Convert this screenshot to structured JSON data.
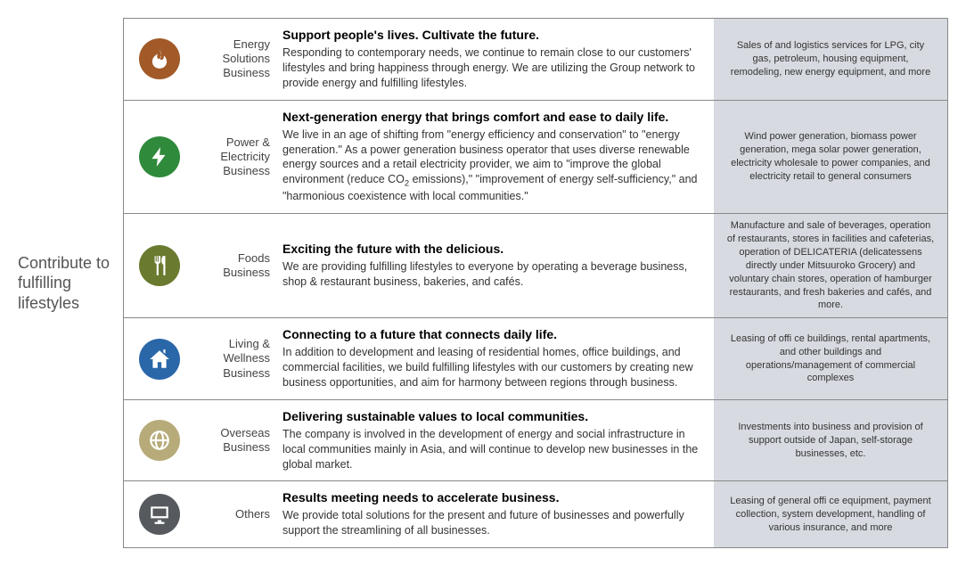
{
  "left_label": "Contribute to fulfilling lifestyles",
  "businesses": [
    {
      "icon": "flame-icon",
      "icon_color": "#a15a28",
      "name": "Energy Solutions Business",
      "tagline": "Support people's lives. Cultivate the future.",
      "desc": "Responding to contemporary needs, we continue to remain close to our customers' lifestyles and bring happiness through energy. We are utilizing the Group network to provide energy and fulfilling lifestyles.",
      "services": "Sales of and logistics services for LPG, city gas, petroleum, housing equipment, remodeling, new energy equipment, and more"
    },
    {
      "icon": "bolt-icon",
      "icon_color": "#2f8a3c",
      "name": "Power & Electricity Business",
      "tagline": "Next-generation energy that brings comfort and ease to daily life.",
      "desc": "We live in an age of shifting from \"energy efficiency and conservation\" to \"energy generation.\" As a power generation business operator that uses diverse renewable energy sources and a retail electricity provider, we aim to \"improve the global environment (reduce CO2 emissions),\" \"improvement of energy self-sufficiency,\" and \"harmonious coexistence with local communities.\"",
      "services": "Wind power generation, biomass power generation, mega solar power generation, electricity wholesale to power companies, and electricity retail to general consumers"
    },
    {
      "icon": "fork-knife-icon",
      "icon_color": "#6a7a2f",
      "name": "Foods Business",
      "tagline": "Exciting the future with the delicious.",
      "desc": "We are providing fulfilling lifestyles to everyone by operating a beverage business, shop & restaurant business, bakeries, and cafés.",
      "services": "Manufacture and sale of beverages, operation of restaurants, stores in facilities and cafeterias, operation of DELICATERIA (delicatessens directly under Mitsuuroko Grocery) and voluntary chain stores, operation of hamburger restaurants, and fresh bakeries and cafés, and more."
    },
    {
      "icon": "home-icon",
      "icon_color": "#2a67a8",
      "name": "Living & Wellness Business",
      "tagline": "Connecting to a future that connects daily life.",
      "desc": "In addition to development and leasing of residential homes, office buildings, and commercial facilities, we build fulfilling lifestyles with our customers by creating new business opportunities, and aim for harmony between regions through business.",
      "services": "Leasing of offi  ce buildings, rental apartments, and other buildings and operations/management of commercial complexes"
    },
    {
      "icon": "globe-icon",
      "icon_color": "#b7ab7a",
      "name": "Overseas Business",
      "tagline": "Delivering sustainable values to local communities.",
      "desc": "The company is involved in the development of energy and social infrastructure in local communities mainly in Asia, and will continue to develop new businesses in the global market.",
      "services": "Investments into business and provision of support outside of Japan, self-storage businesses, etc."
    },
    {
      "icon": "monitor-icon",
      "icon_color": "#565a5e",
      "name": "Others",
      "tagline": "Results meeting needs to accelerate business.",
      "desc": "We provide total solutions for the present and future of businesses and powerfully support the streamlining of all businesses.",
      "services": "Leasing of general offi  ce equipment, payment collection, system development, handling of various insurance, and more"
    }
  ]
}
